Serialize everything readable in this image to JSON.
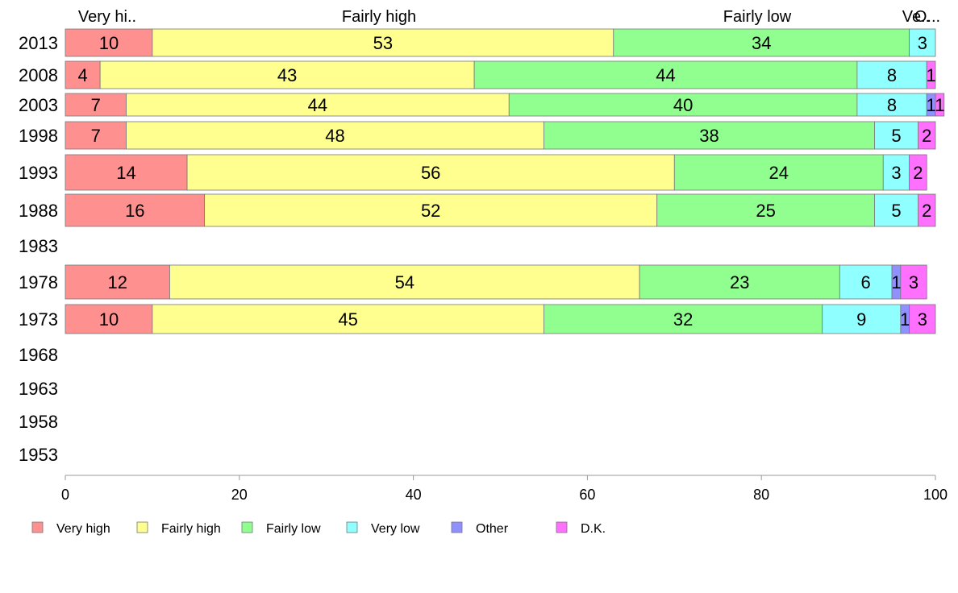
{
  "chart_data": {
    "type": "bar",
    "orientation": "horizontal",
    "stacked": true,
    "categories": [
      "2013",
      "2008",
      "2003",
      "1998",
      "1993",
      "1988",
      "1983",
      "1978",
      "1973",
      "1968",
      "1963",
      "1958",
      "1953"
    ],
    "series": [
      {
        "name": "Very high",
        "color": "#ff9090",
        "values": [
          10,
          4,
          7,
          7,
          14,
          16,
          null,
          12,
          10,
          null,
          null,
          null,
          null
        ]
      },
      {
        "name": "Fairly high",
        "color": "#ffff90",
        "values": [
          53,
          43,
          44,
          48,
          56,
          52,
          null,
          54,
          45,
          null,
          null,
          null,
          null
        ]
      },
      {
        "name": "Fairly low",
        "color": "#90ff90",
        "values": [
          34,
          44,
          40,
          38,
          24,
          25,
          null,
          23,
          32,
          null,
          null,
          null,
          null
        ]
      },
      {
        "name": "Very low",
        "color": "#90ffff",
        "values": [
          3,
          8,
          8,
          5,
          3,
          5,
          null,
          6,
          9,
          null,
          null,
          null,
          null
        ]
      },
      {
        "name": "Other",
        "color": "#9090ff",
        "values": [
          0,
          0,
          1,
          0,
          0,
          0,
          null,
          1,
          1,
          null,
          null,
          null,
          null
        ]
      },
      {
        "name": "D.K.",
        "color": "#ff70ff",
        "values": [
          0,
          1,
          1,
          2,
          2,
          2,
          null,
          3,
          3,
          null,
          null,
          null,
          null
        ]
      }
    ],
    "top_labels": [
      "Very hi..",
      "Fairly high",
      "Fairly low",
      "Ve..",
      "O..."
    ],
    "x_ticks": [
      0,
      20,
      40,
      60,
      80,
      100
    ],
    "xlim": [
      0,
      100
    ],
    "grid": false,
    "legend_position": "bottom",
    "xlabel": "",
    "ylabel": "",
    "title": ""
  }
}
